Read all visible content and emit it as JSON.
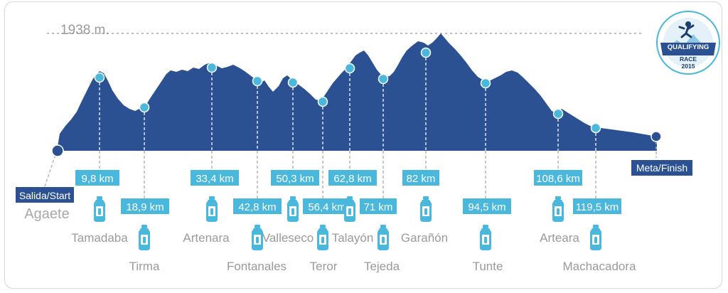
{
  "chart_data": {
    "type": "area",
    "title": "",
    "max_altitude_label": "1938 m.",
    "start": {
      "label": "Salida/Start",
      "town": "Agaete",
      "km": 0
    },
    "finish": {
      "label": "Meta/Finish",
      "km": 125
    },
    "checkpoints": [
      {
        "km": 9.8,
        "label": "9,8 km",
        "name": "Tamadaba"
      },
      {
        "km": 18.9,
        "label": "18,9 km",
        "name": "Tirma"
      },
      {
        "km": 33.4,
        "label": "33,4 km",
        "name": "Artenara"
      },
      {
        "km": 42.8,
        "label": "42,8 km",
        "name": "Fontanales"
      },
      {
        "km": 50.3,
        "label": "50,3 km",
        "name": "Valleseco"
      },
      {
        "km": 56.4,
        "label": "56,4 km",
        "name": "Teror"
      },
      {
        "km": 62.8,
        "label": "62,8 km",
        "name": "Talayón"
      },
      {
        "km": 71,
        "label": "71 km",
        "name": "Tejeda"
      },
      {
        "km": 82,
        "label": "82 km",
        "name": "Garañón"
      },
      {
        "km": 94.5,
        "label": "94,5 km",
        "name": "Tunte"
      },
      {
        "km": 108.6,
        "label": "108,6 km",
        "name": "Arteara"
      },
      {
        "km": 119.5,
        "label": "119,5 km",
        "name": "Machacadora"
      }
    ],
    "badge": {
      "line1": "QUALIFYING",
      "line2": "RACE",
      "line3": "2015"
    },
    "colors": {
      "profile": "#2b5193",
      "marker": "#49b8dc",
      "label_bg": "#49b8dc",
      "label_text": "#ffffff",
      "name_text": "#9a9a9a",
      "guide": "#b0b0b0",
      "start_finish_bg": "#2b5193"
    }
  }
}
